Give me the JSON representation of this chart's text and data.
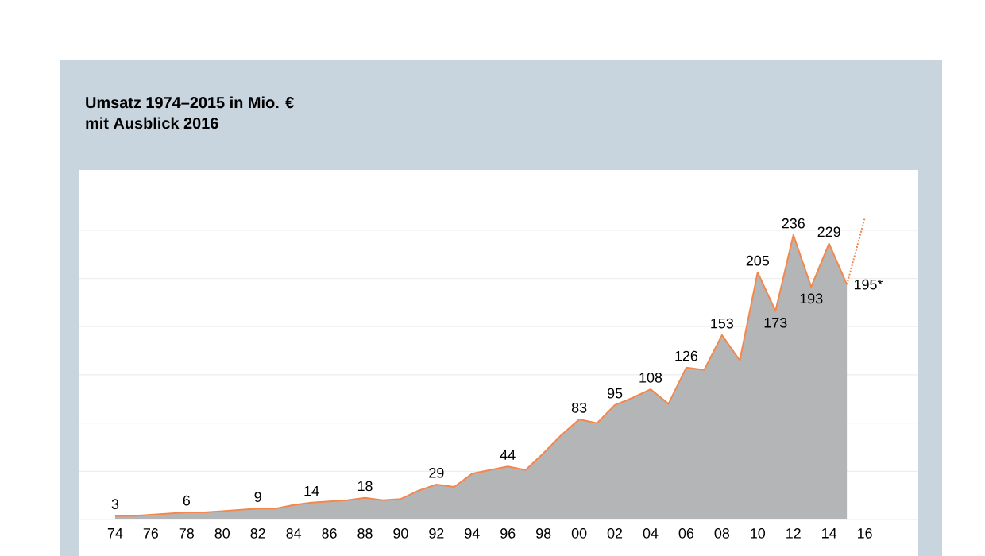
{
  "chart_data": {
    "type": "area",
    "title": "Umsatz 1974–2015 in Mio. €",
    "subtitle": "mit Ausblick 2016",
    "x": [
      1974,
      1975,
      1976,
      1977,
      1978,
      1979,
      1980,
      1981,
      1982,
      1983,
      1984,
      1985,
      1986,
      1987,
      1988,
      1989,
      1990,
      1991,
      1992,
      1993,
      1994,
      1995,
      1996,
      1997,
      1998,
      1999,
      2000,
      2001,
      2002,
      2003,
      2004,
      2005,
      2006,
      2007,
      2008,
      2009,
      2010,
      2011,
      2012,
      2013,
      2014,
      2015
    ],
    "series": [
      {
        "color": "#f4874b",
        "values": [
          3,
          3,
          4,
          5,
          6,
          6,
          7,
          8,
          9,
          9,
          12,
          14,
          15,
          16,
          18,
          16,
          17,
          24,
          29,
          27,
          38,
          41,
          44,
          41,
          55,
          70,
          83,
          80,
          95,
          101,
          108,
          96,
          126,
          124,
          153,
          132,
          205,
          173,
          236,
          193,
          229,
          195
        ],
        "value_labels": [
          "3",
          null,
          null,
          null,
          "6",
          null,
          null,
          null,
          "9",
          null,
          null,
          "14",
          null,
          null,
          "18",
          null,
          null,
          null,
          "29",
          null,
          null,
          null,
          "44",
          null,
          null,
          null,
          "83",
          null,
          "95",
          null,
          "108",
          null,
          "126",
          null,
          "153",
          null,
          "205",
          "173",
          "236",
          "193",
          "229",
          "195*"
        ]
      },
      {
        "type": "line",
        "color": "#f4874b",
        "line_style": "dotted",
        "x": [
          2015,
          2016
        ],
        "values": [
          195,
          250
        ]
      }
    ],
    "xlim": [
      1972,
      2019
    ],
    "ylim": [
      0,
      290
    ],
    "xticks": [
      {
        "value": 1974,
        "label": "74"
      },
      {
        "value": 1976,
        "label": "76"
      },
      {
        "value": 1978,
        "label": "78"
      },
      {
        "value": 1980,
        "label": "80"
      },
      {
        "value": 1982,
        "label": "82"
      },
      {
        "value": 1984,
        "label": "84"
      },
      {
        "value": 1986,
        "label": "86"
      },
      {
        "value": 1988,
        "label": "88"
      },
      {
        "value": 1990,
        "label": "90"
      },
      {
        "value": 1992,
        "label": "92"
      },
      {
        "value": 1994,
        "label": "94"
      },
      {
        "value": 1996,
        "label": "96"
      },
      {
        "value": 1998,
        "label": "98"
      },
      {
        "value": 2000,
        "label": "00"
      },
      {
        "value": 2002,
        "label": "02"
      },
      {
        "value": 2004,
        "label": "04"
      },
      {
        "value": 2006,
        "label": "06"
      },
      {
        "value": 2008,
        "label": "08"
      },
      {
        "value": 2010,
        "label": "10"
      },
      {
        "value": 2012,
        "label": "12"
      },
      {
        "value": 2014,
        "label": "14"
      },
      {
        "value": 2016,
        "label": "16"
      }
    ],
    "yticks": [
      {
        "value": 0,
        "label": null
      },
      {
        "value": 40,
        "label": null
      },
      {
        "value": 80,
        "label": null
      },
      {
        "value": 120,
        "label": null
      },
      {
        "value": 160,
        "label": null
      },
      {
        "value": 200,
        "label": null
      },
      {
        "value": 240,
        "label": null
      }
    ],
    "tick_labels": "x",
    "grid": "y"
  }
}
